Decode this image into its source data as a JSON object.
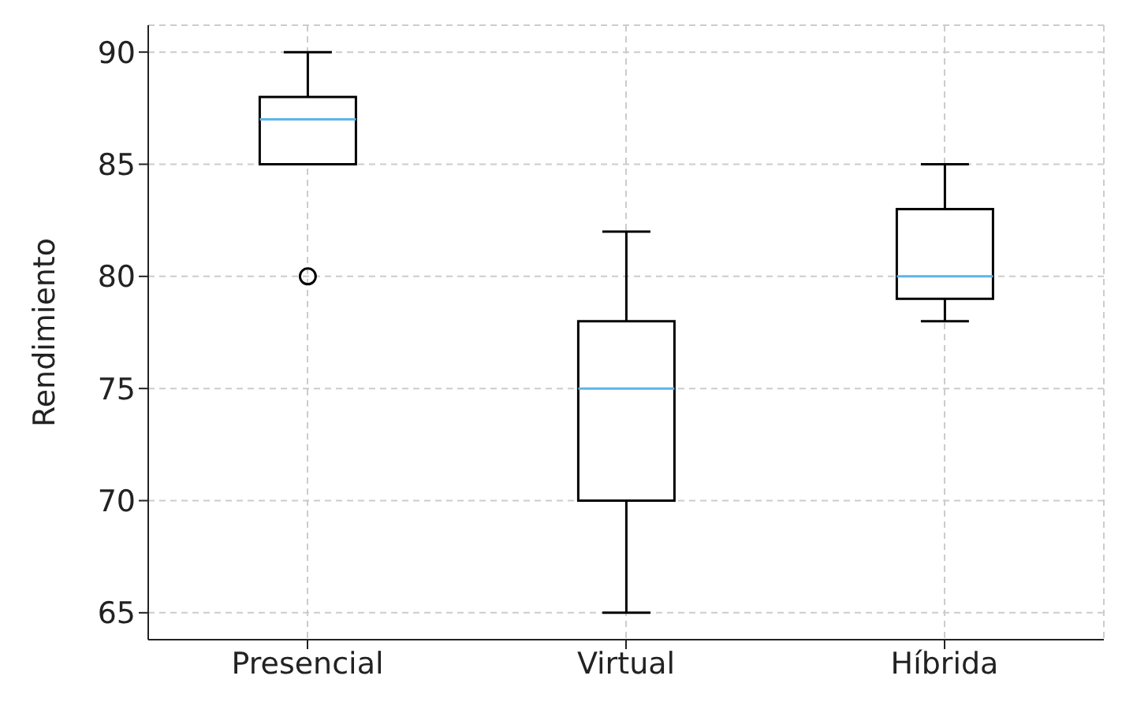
{
  "chart_data": {
    "type": "box",
    "ylabel": "Rendimiento",
    "categories": [
      "Presencial",
      "Virtual",
      "Híbrida"
    ],
    "boxes": [
      {
        "low": 85,
        "q1": 85,
        "median": 87,
        "q3": 88,
        "high": 90,
        "outliers": [
          80
        ]
      },
      {
        "low": 65,
        "q1": 70,
        "median": 75,
        "q3": 78,
        "high": 82
      },
      {
        "low": 78,
        "q1": 79,
        "median": 80,
        "q3": 83,
        "high": 85
      }
    ],
    "ylim": [
      63.8,
      91.2
    ],
    "yticks": [
      65,
      70,
      75,
      80,
      85,
      90
    ],
    "grid": true
  }
}
